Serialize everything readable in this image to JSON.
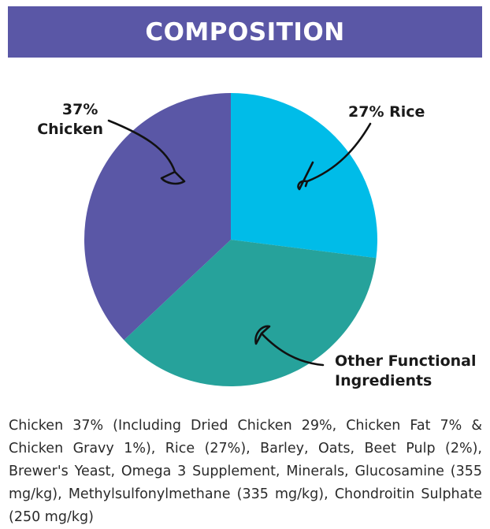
{
  "header": {
    "title": "COMPOSITION",
    "background_color": "#5a57a6"
  },
  "chart_data": {
    "type": "pie",
    "title": "COMPOSITION",
    "slices": [
      {
        "label": "Rice",
        "value": 27,
        "color": "#00bce8",
        "annotation_lines": [
          "27% Rice"
        ]
      },
      {
        "label": "Other Functional Ingredients",
        "value": 36,
        "color": "#26a29b",
        "annotation_lines": [
          "Other Functional",
          "Ingredients"
        ]
      },
      {
        "label": "Chicken",
        "value": 37,
        "color": "#5a57a6",
        "annotation_lines": [
          "37%",
          "Chicken"
        ]
      }
    ]
  },
  "description": "Chicken 37% (Including Dried Chicken 29%, Chicken Fat 7% & Chicken Gravy 1%),  Rice (27%), Barley, Oats, Beet Pulp (2%), Brewer's Yeast, Omega 3 Supplement, Minerals, Glucosamine (355 mg/kg), Methylsulfonylmethane (335 mg/kg), Chondroitin Sulphate (250 mg/kg)"
}
